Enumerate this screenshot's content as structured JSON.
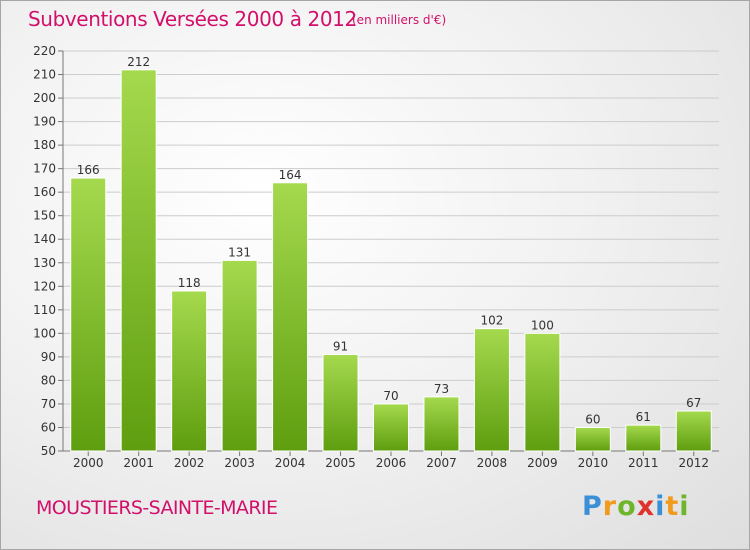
{
  "title": "Subventions Versées 2000 à 2012",
  "subtitle": "(en milliers d'€)",
  "commune": "MOUSTIERS-SAINTE-MARIE",
  "logo": {
    "letters": [
      "P",
      "r",
      "o",
      "x",
      "i",
      "t",
      "i"
    ],
    "colors": [
      "#3a8fd6",
      "#f29a1d",
      "#6fb52c",
      "#e0322c",
      "#3a8fd6",
      "#f29a1d",
      "#6fb52c"
    ]
  },
  "colors": {
    "title": "#d2106b",
    "bar_light": "#a5d94e",
    "bar_dark": "#5e9e0f"
  },
  "chart_data": {
    "type": "bar",
    "categories": [
      "2000",
      "2001",
      "2002",
      "2003",
      "2004",
      "2005",
      "2006",
      "2007",
      "2008",
      "2009",
      "2010",
      "2011",
      "2012"
    ],
    "values": [
      166,
      212,
      118,
      131,
      164,
      91,
      70,
      73,
      102,
      100,
      60,
      61,
      67
    ],
    "ylim": [
      50,
      220
    ],
    "yticks": [
      50,
      60,
      70,
      80,
      90,
      100,
      110,
      120,
      130,
      140,
      150,
      160,
      170,
      180,
      190,
      200,
      210,
      220
    ],
    "grid": true
  }
}
